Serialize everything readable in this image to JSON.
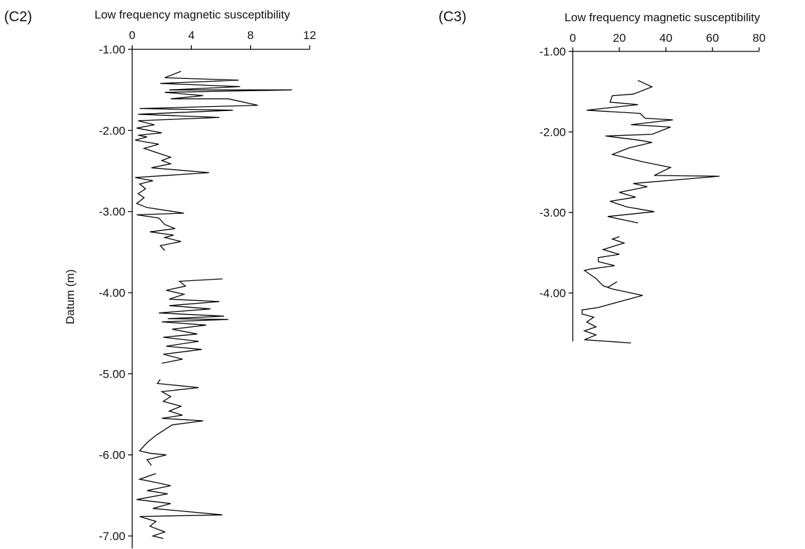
{
  "chart_data": [
    {
      "panel": "(C2)",
      "type": "line",
      "xlabel": "Low frequency magnetic susceptibility",
      "ylabel": "Datum (m)",
      "xlim": [
        0,
        12
      ],
      "x_ticks": [
        "0",
        "4",
        "8",
        "12"
      ],
      "ylim": [
        -1.0,
        -7.0
      ],
      "y_ticks": [
        "-1.00",
        "-2.00",
        "-3.00",
        "-4.00",
        "-5.00",
        "-6.00",
        "-7.00"
      ],
      "grid": false,
      "series": [
        {
          "points": [
            [
              3.3,
              -1.27
            ],
            [
              2.2,
              -1.35
            ],
            [
              7.2,
              -1.38
            ],
            [
              1.9,
              -1.42
            ],
            [
              7.3,
              -1.46
            ],
            [
              2.5,
              -1.5
            ],
            [
              10.8,
              -1.5
            ],
            [
              2.2,
              -1.53
            ],
            [
              4.8,
              -1.57
            ],
            [
              2.6,
              -1.61
            ],
            [
              6.5,
              -1.61
            ],
            [
              8.5,
              -1.69
            ],
            [
              0.5,
              -1.73
            ],
            [
              6.8,
              -1.75
            ],
            [
              0.4,
              -1.8
            ],
            [
              5.9,
              -1.84
            ],
            [
              0.4,
              -1.88
            ],
            [
              1.5,
              -1.93
            ],
            [
              0.3,
              -1.97
            ],
            [
              2.0,
              -2.03
            ],
            [
              0.4,
              -2.06
            ],
            [
              1.0,
              -2.08
            ],
            [
              0.2,
              -2.12
            ],
            [
              1.8,
              -2.17
            ],
            [
              0.8,
              -2.22
            ],
            [
              1.6,
              -2.27
            ],
            [
              2.6,
              -2.33
            ],
            [
              2.0,
              -2.37
            ],
            [
              2.6,
              -2.41
            ],
            [
              1.3,
              -2.46
            ],
            [
              5.2,
              -2.52
            ],
            [
              0.2,
              -2.58
            ],
            [
              1.4,
              -2.62
            ],
            [
              0.5,
              -2.66
            ],
            [
              0.9,
              -2.72
            ],
            [
              0.4,
              -2.78
            ],
            [
              0.8,
              -2.83
            ],
            [
              0.3,
              -2.9
            ],
            [
              1.0,
              -2.95
            ],
            [
              3.5,
              -3.02
            ],
            [
              0.3,
              -3.04
            ],
            [
              1.8,
              -3.08
            ],
            [
              2.2,
              -3.16
            ],
            [
              2.9,
              -3.21
            ],
            [
              1.2,
              -3.25
            ],
            [
              2.8,
              -3.29
            ],
            [
              2.2,
              -3.32
            ],
            [
              3.3,
              -3.37
            ],
            [
              1.9,
              -3.42
            ],
            [
              2.2,
              -3.48
            ]
          ]
        },
        {
          "points": [
            [
              6.1,
              -3.83
            ],
            [
              3.2,
              -3.86
            ],
            [
              3.6,
              -3.92
            ],
            [
              2.3,
              -3.97
            ],
            [
              3.5,
              -4.02
            ],
            [
              2.5,
              -4.08
            ],
            [
              5.9,
              -4.11
            ],
            [
              2.5,
              -4.16
            ],
            [
              5.3,
              -4.2
            ],
            [
              1.8,
              -4.25
            ],
            [
              6.2,
              -4.29
            ],
            [
              2.4,
              -4.32
            ],
            [
              6.5,
              -4.33
            ],
            [
              2.0,
              -4.36
            ],
            [
              5.0,
              -4.4
            ],
            [
              2.7,
              -4.45
            ],
            [
              4.4,
              -4.51
            ],
            [
              2.1,
              -4.55
            ],
            [
              4.5,
              -4.6
            ],
            [
              2.3,
              -4.66
            ],
            [
              4.7,
              -4.7
            ],
            [
              2.1,
              -4.76
            ],
            [
              3.4,
              -4.82
            ],
            [
              2.0,
              -4.87
            ]
          ]
        },
        {
          "points": [
            [
              1.9,
              -5.07
            ],
            [
              1.7,
              -5.12
            ],
            [
              4.5,
              -5.17
            ],
            [
              2.0,
              -5.22
            ],
            [
              2.6,
              -5.28
            ],
            [
              2.1,
              -5.34
            ],
            [
              3.3,
              -5.4
            ],
            [
              2.5,
              -5.46
            ],
            [
              3.4,
              -5.51
            ],
            [
              2.0,
              -5.55
            ],
            [
              4.8,
              -5.58
            ],
            [
              2.7,
              -5.63
            ],
            [
              2.1,
              -5.7
            ],
            [
              1.6,
              -5.76
            ],
            [
              1.0,
              -5.85
            ],
            [
              0.5,
              -5.95
            ],
            [
              1.2,
              -5.98
            ],
            [
              2.3,
              -6.0
            ],
            [
              1.0,
              -6.06
            ],
            [
              1.3,
              -6.13
            ]
          ]
        },
        {
          "points": [
            [
              1.6,
              -6.23
            ],
            [
              0.5,
              -6.3
            ],
            [
              1.6,
              -6.34
            ],
            [
              2.6,
              -6.38
            ],
            [
              1.0,
              -6.44
            ],
            [
              2.4,
              -6.48
            ],
            [
              0.3,
              -6.55
            ],
            [
              2.6,
              -6.6
            ],
            [
              1.4,
              -6.66
            ],
            [
              6.1,
              -6.74
            ],
            [
              0.5,
              -6.76
            ],
            [
              1.6,
              -6.82
            ],
            [
              1.2,
              -6.88
            ],
            [
              2.2,
              -6.95
            ],
            [
              1.4,
              -7.0
            ],
            [
              2.1,
              -7.03
            ]
          ]
        }
      ]
    },
    {
      "panel": "(C3)",
      "type": "line",
      "xlabel": "Low frequency magnetic susceptibility",
      "xlim": [
        0,
        80
      ],
      "x_ticks": [
        "0",
        "20",
        "40",
        "60",
        "80"
      ],
      "ylim": [
        -1.0,
        -4.6
      ],
      "y_ticks": [
        "-1.00",
        "-2.00",
        "-3.00",
        "-4.00"
      ],
      "grid": false,
      "series": [
        {
          "points": [
            [
              28,
              -1.36
            ],
            [
              34,
              -1.44
            ],
            [
              26,
              -1.53
            ],
            [
              17,
              -1.55
            ],
            [
              16,
              -1.63
            ],
            [
              28,
              -1.66
            ],
            [
              6,
              -1.73
            ],
            [
              29,
              -1.77
            ],
            [
              31,
              -1.83
            ],
            [
              43,
              -1.85
            ],
            [
              25,
              -1.91
            ],
            [
              42,
              -1.94
            ],
            [
              34,
              -2.03
            ],
            [
              14,
              -2.05
            ],
            [
              28,
              -2.1
            ],
            [
              34,
              -2.13
            ],
            [
              24,
              -2.2
            ],
            [
              17,
              -2.28
            ],
            [
              30,
              -2.37
            ],
            [
              42,
              -2.44
            ],
            [
              35,
              -2.54
            ],
            [
              63,
              -2.55
            ],
            [
              26,
              -2.64
            ],
            [
              32,
              -2.68
            ],
            [
              20,
              -2.75
            ],
            [
              27,
              -2.81
            ],
            [
              16,
              -2.86
            ],
            [
              23,
              -2.93
            ],
            [
              35,
              -2.99
            ],
            [
              15,
              -3.05
            ],
            [
              28,
              -3.13
            ]
          ]
        },
        {
          "points": [
            [
              20,
              -3.3
            ],
            [
              17,
              -3.33
            ],
            [
              22,
              -3.38
            ],
            [
              13,
              -3.46
            ],
            [
              20,
              -3.52
            ],
            [
              11,
              -3.56
            ],
            [
              11,
              -3.61
            ],
            [
              18,
              -3.66
            ],
            [
              8,
              -3.7
            ],
            [
              5,
              -3.72
            ],
            [
              10,
              -3.82
            ],
            [
              13,
              -3.91
            ],
            [
              17,
              -3.95
            ],
            [
              30,
              -4.03
            ],
            [
              11,
              -4.18
            ],
            [
              4,
              -4.21
            ],
            [
              4,
              -4.26
            ],
            [
              9,
              -4.3
            ],
            [
              6,
              -4.36
            ],
            [
              10,
              -4.42
            ],
            [
              5,
              -4.47
            ],
            [
              10,
              -4.52
            ],
            [
              5,
              -4.58
            ],
            [
              25,
              -4.62
            ]
          ]
        },
        {
          "points": [
            [
              19,
              -3.86
            ],
            [
              15,
              -3.93
            ]
          ]
        }
      ]
    }
  ]
}
